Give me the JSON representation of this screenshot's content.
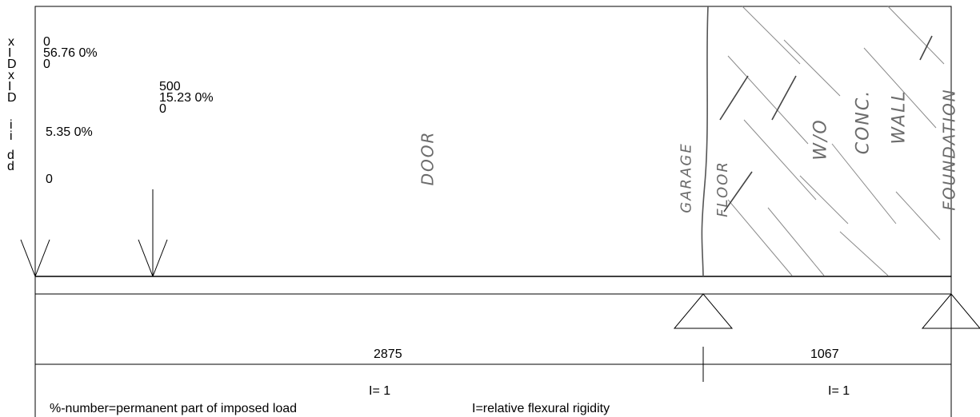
{
  "axis_labels": [
    "x",
    "I",
    "D",
    "x",
    "I",
    "D",
    "i",
    "i",
    "d",
    "d"
  ],
  "load_0": {
    "line1": "0",
    "line2": "56.76  0%",
    "line3": "0",
    "line4": "5.35  0%",
    "line5": "0"
  },
  "load_1": {
    "line1": "500",
    "line2": "15.23  0%",
    "line3": "0"
  },
  "spans": [
    {
      "length": "2875",
      "rigidity": "I= 1"
    },
    {
      "length": "1067",
      "rigidity": "I= 1"
    }
  ],
  "legend": {
    "percent_note": "%-number=permanent part of imposed load",
    "rigidity_note": "I=relative flexural rigidity"
  },
  "handwritten": {
    "door": "DOOR",
    "garage": "GARAGE",
    "floor": "FLOOR",
    "wall_line1": "W/O",
    "wall_line2": "CONC.",
    "wall_line3": "WALL",
    "foundation": "FOUNDATION"
  },
  "colors": {
    "ink": "#000000",
    "pencil": "#6b6b6b"
  }
}
